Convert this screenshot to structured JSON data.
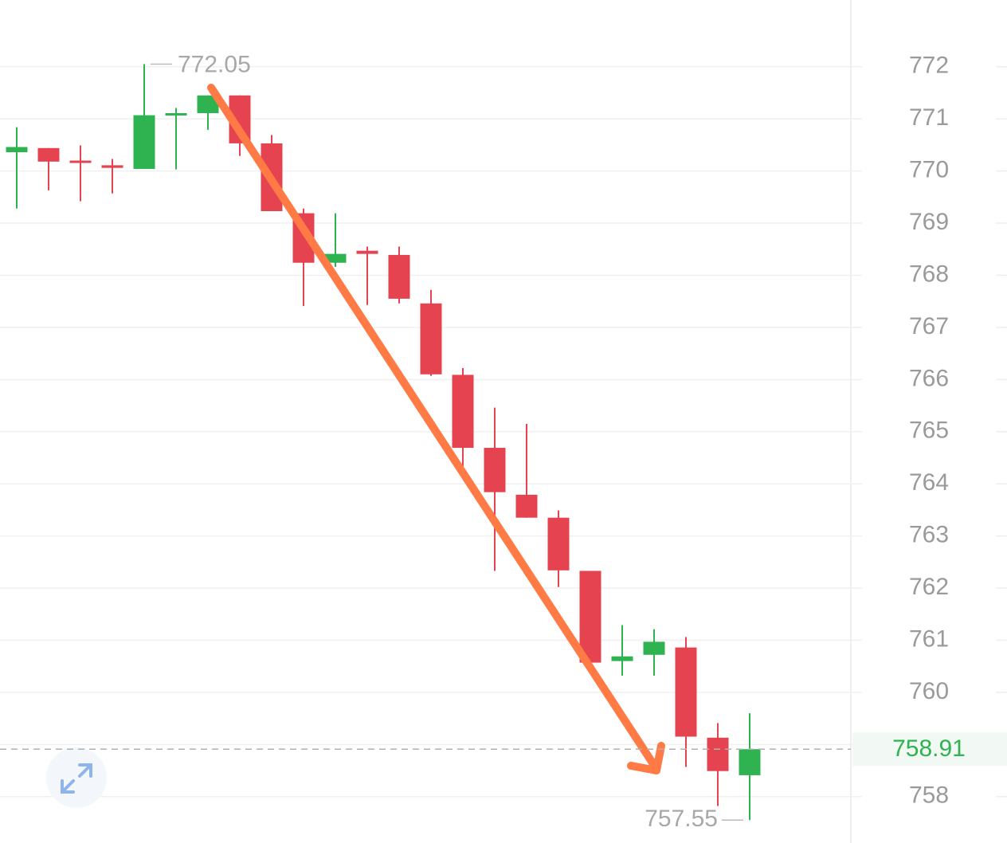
{
  "chart_data": {
    "type": "candlestick",
    "open": [
      770.36,
      770.44,
      770.2,
      770.11,
      770.04,
      771.07,
      771.11,
      771.45,
      770.53,
      769.19,
      768.24,
      768.47,
      768.39,
      767.46,
      766.09,
      764.69,
      763.79,
      763.35,
      762.33,
      760.6,
      760.72,
      760.86,
      759.13,
      758.41
    ],
    "high": [
      770.84,
      770.44,
      770.49,
      770.23,
      772.05,
      771.21,
      771.45,
      771.45,
      770.69,
      769.28,
      769.19,
      768.55,
      768.55,
      767.72,
      766.22,
      765.46,
      765.15,
      763.49,
      762.33,
      761.29,
      761.21,
      761.06,
      759.41,
      759.6
    ],
    "low": [
      769.28,
      769.63,
      769.42,
      769.57,
      770.04,
      770.03,
      770.79,
      770.29,
      769.23,
      767.41,
      768.16,
      767.43,
      767.46,
      766.07,
      764.34,
      762.33,
      763.35,
      762.02,
      760.57,
      760.32,
      760.32,
      758.57,
      757.82,
      757.55
    ],
    "close": [
      770.46,
      770.18,
      770.16,
      770.06,
      771.07,
      771.11,
      771.45,
      770.53,
      769.23,
      768.24,
      768.41,
      768.41,
      767.55,
      766.1,
      764.69,
      763.84,
      763.35,
      762.34,
      760.57,
      760.69,
      760.97,
      759.15,
      758.49,
      758.91
    ],
    "up_color": "#2fb350",
    "down_color": "#e5434f",
    "ylim": [
      757.11,
      773.28
    ],
    "yticks": [
      758,
      759,
      760,
      761,
      762,
      763,
      764,
      765,
      766,
      767,
      768,
      769,
      770,
      771,
      772
    ],
    "yticks_hidden": [
      759
    ],
    "grid": true
  }
}
